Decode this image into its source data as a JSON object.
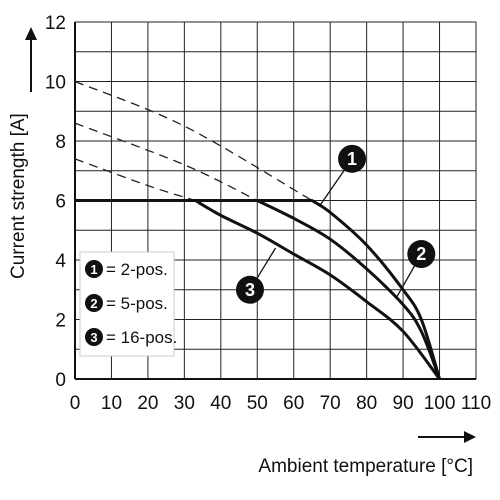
{
  "chart_data": {
    "type": "line",
    "xlabel": "Ambient temperature [°C]",
    "ylabel": "Current strength [A]",
    "xlim": [
      0,
      110
    ],
    "ylim": [
      0,
      12
    ],
    "x_ticks": [
      "0",
      "10",
      "20",
      "30",
      "40",
      "50",
      "60",
      "70",
      "80",
      "90",
      "100",
      "110"
    ],
    "y_ticks": [
      "0",
      "2",
      "4",
      "6",
      "8",
      "10",
      "12"
    ],
    "grid": true,
    "series": [
      {
        "marker": "1",
        "legend": "= 2-pos.",
        "line_style": "solid",
        "points": [
          [
            0,
            6
          ],
          [
            65,
            6
          ],
          [
            70,
            5.6
          ],
          [
            80,
            4.5
          ],
          [
            90,
            3.0
          ],
          [
            95,
            2.0
          ],
          [
            100,
            0
          ]
        ]
      },
      {
        "marker": "2",
        "legend": "= 5-pos.",
        "line_style": "solid",
        "points": [
          [
            0,
            6
          ],
          [
            50,
            6
          ],
          [
            60,
            5.4
          ],
          [
            70,
            4.7
          ],
          [
            80,
            3.7
          ],
          [
            90,
            2.5
          ],
          [
            95,
            1.6
          ],
          [
            100,
            0
          ]
        ]
      },
      {
        "marker": "3",
        "legend": "= 16-pos.",
        "line_style": "solid",
        "points": [
          [
            0,
            6
          ],
          [
            33,
            6
          ],
          [
            40,
            5.5
          ],
          [
            50,
            4.9
          ],
          [
            60,
            4.2
          ],
          [
            70,
            3.5
          ],
          [
            80,
            2.6
          ],
          [
            90,
            1.6
          ],
          [
            100,
            0
          ]
        ]
      }
    ],
    "extrapolations": [
      {
        "marker": "1",
        "line_style": "dashed",
        "points": [
          [
            0,
            10.0
          ],
          [
            30,
            8.5
          ],
          [
            65,
            6
          ]
        ]
      },
      {
        "marker": "2",
        "line_style": "dashed",
        "points": [
          [
            0,
            8.6
          ],
          [
            30,
            7.2
          ],
          [
            50,
            6
          ]
        ]
      },
      {
        "marker": "3",
        "line_style": "dashed",
        "points": [
          [
            0,
            7.4
          ],
          [
            20,
            6.5
          ],
          [
            33,
            6
          ]
        ]
      }
    ],
    "callouts": [
      {
        "marker": "1",
        "label_at": [
          76,
          7.4
        ],
        "points_to": [
          67,
          5.8
        ]
      },
      {
        "marker": "2",
        "label_at": [
          95,
          4.2
        ],
        "points_to": [
          88,
          2.7
        ]
      },
      {
        "marker": "3",
        "label_at": [
          48,
          3.0
        ],
        "points_to": [
          55,
          4.4
        ]
      }
    ],
    "legend": {
      "position": "bottom-left"
    }
  }
}
